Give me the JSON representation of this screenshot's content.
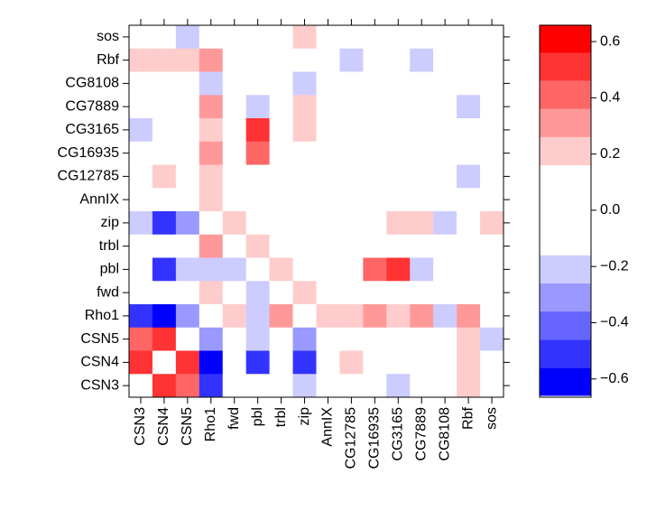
{
  "chart_data": {
    "type": "heatmap",
    "x_categories": [
      "CSN3",
      "CSN4",
      "CSN5",
      "Rho1",
      "fwd",
      "pbl",
      "trbl",
      "zip",
      "AnnIX",
      "CG12785",
      "CG16935",
      "CG3165",
      "CG7889",
      "CG8108",
      "Rbf",
      "sos"
    ],
    "y_categories": [
      "sos",
      "Rbf",
      "CG8108",
      "CG7889",
      "CG3165",
      "CG16935",
      "CG12785",
      "AnnIX",
      "zip",
      "trbl",
      "pbl",
      "fwd",
      "Rho1",
      "CSN5",
      "CSN4",
      "CSN3"
    ],
    "values": [
      [
        0,
        0,
        -0.2,
        0,
        0,
        0,
        0,
        0.2,
        0,
        0,
        0,
        0,
        0,
        0,
        0,
        0
      ],
      [
        0.2,
        0.2,
        0.2,
        0.3,
        0,
        0,
        0,
        0,
        0,
        -0.2,
        0,
        0,
        -0.2,
        0,
        0,
        0
      ],
      [
        0,
        0,
        0,
        -0.2,
        0,
        0,
        0,
        -0.2,
        0,
        0,
        0,
        0,
        0,
        0,
        0,
        0
      ],
      [
        0,
        0,
        0,
        0.3,
        0,
        -0.2,
        0,
        0.2,
        0,
        0,
        0,
        0,
        0,
        0,
        -0.2,
        0
      ],
      [
        -0.2,
        0,
        0,
        0.2,
        0,
        0.5,
        0,
        0.2,
        0,
        0,
        0,
        0,
        0,
        0,
        0,
        0
      ],
      [
        0,
        0,
        0,
        0.3,
        0,
        0.4,
        0,
        0,
        0,
        0,
        0,
        0,
        0,
        0,
        0,
        0
      ],
      [
        0,
        0.2,
        0,
        0.2,
        0,
        0,
        0,
        0,
        0,
        0,
        0,
        0,
        0,
        0,
        -0.2,
        0
      ],
      [
        0,
        0,
        0,
        0.2,
        0,
        0,
        0,
        0,
        0,
        0,
        0,
        0,
        0,
        0,
        0,
        0
      ],
      [
        -0.2,
        -0.5,
        -0.3,
        0,
        0.2,
        0,
        0,
        0,
        0,
        0,
        0,
        0.2,
        0.2,
        -0.2,
        0,
        0.2
      ],
      [
        0,
        0,
        0,
        0.3,
        0,
        0.2,
        0,
        0,
        0,
        0,
        0,
        0,
        0,
        0,
        0,
        0
      ],
      [
        0,
        -0.5,
        -0.2,
        -0.2,
        -0.2,
        0,
        0.2,
        0,
        0,
        0,
        0.4,
        0.5,
        -0.2,
        0,
        0,
        0
      ],
      [
        0,
        0,
        0,
        0.2,
        0,
        -0.2,
        0,
        0.2,
        0,
        0,
        0,
        0,
        0,
        0,
        0,
        0
      ],
      [
        -0.5,
        -0.6,
        -0.3,
        0,
        0.2,
        -0.2,
        0.3,
        0,
        0.2,
        0.2,
        0.3,
        0.2,
        0.3,
        -0.2,
        0.3,
        0
      ],
      [
        0.4,
        0.5,
        0,
        -0.3,
        0,
        -0.2,
        0,
        -0.3,
        0,
        0,
        0,
        0,
        0,
        0,
        0.2,
        -0.2
      ],
      [
        0.5,
        0,
        0.5,
        -0.6,
        0,
        -0.5,
        0,
        -0.5,
        0,
        0.2,
        0,
        0,
        0,
        0,
        0.2,
        0
      ],
      [
        0,
        0.5,
        0.4,
        -0.5,
        0,
        0,
        0,
        -0.2,
        0,
        0,
        0,
        -0.2,
        0,
        0,
        0.2,
        0
      ]
    ],
    "colorbar": {
      "breaks": [
        -0.66,
        -0.56,
        -0.46,
        -0.36,
        -0.26,
        -0.16,
        0.16,
        0.26,
        0.36,
        0.46,
        0.56,
        0.66
      ],
      "colors": [
        "#0000ff",
        "#3333ff",
        "#6666ff",
        "#9999ff",
        "#ccccff",
        "#ffffff",
        "#ffcccc",
        "#ff9999",
        "#ff6666",
        "#ff3333",
        "#ff0000"
      ],
      "ylim": [
        -0.665,
        0.658
      ],
      "yticks": [
        {
          "value": -0.6,
          "label": "−0.6"
        },
        {
          "value": -0.4,
          "label": "−0.4"
        },
        {
          "value": -0.2,
          "label": "−0.2"
        },
        {
          "value": 0,
          "label": "0.0"
        },
        0.2,
        0.4,
        0.6
      ]
    }
  }
}
